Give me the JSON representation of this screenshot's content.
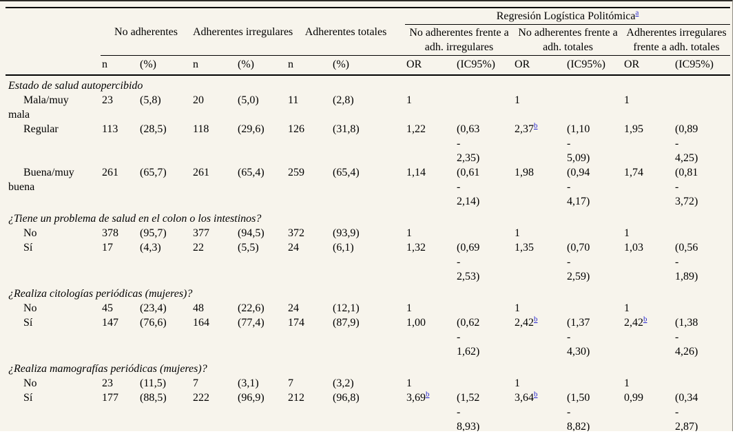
{
  "colors": {
    "background": "#f7f4ec",
    "link": "#2222cc",
    "rule": "#000000"
  },
  "table": {
    "header": {
      "group_columns": [
        "No adherentes",
        "Adherentes irregulares",
        "Adherentes totales"
      ],
      "regression_title": "Regresión Logística Politómica",
      "regression_footnote_ref": "a",
      "comparison_columns": [
        "No adherentes frente a\nadh. irregulares",
        "No adherentes frente a\nadh. totales",
        "Adherentes irregulares\nfrente a adh. totales"
      ],
      "count_headers": [
        "n",
        "(%)"
      ],
      "or_headers": [
        "OR",
        "(IC95%)"
      ]
    },
    "sections": [
      {
        "title": "Estado de salud autopercibido",
        "rows": [
          {
            "label": "Mala/muy\nmala",
            "cells": [
              "23",
              "(5,8)",
              "20",
              "(5,0)",
              "11",
              "(2,8)",
              "1",
              "",
              "1",
              "",
              "1",
              ""
            ]
          },
          {
            "label": "Regular",
            "cells": [
              "113",
              "(28,5)",
              "118",
              "(29,6)",
              "126",
              "(31,8)",
              "1,22",
              "(0,63\n-\n2,35)",
              {
                "v": "2,37",
                "sup": "b"
              },
              "(1,10\n-\n5,09)",
              "1,95",
              "(0,89\n-\n4,25)"
            ]
          },
          {
            "label": "Buena/muy\nbuena",
            "cells": [
              "261",
              "(65,7)",
              "261",
              "(65,4)",
              "259",
              "(65,4)",
              "1,14",
              "(0,61\n-\n2,14)",
              "1,98",
              "(0,94\n-\n4,17)",
              "1,74",
              "(0,81\n-\n3,72)"
            ]
          }
        ]
      },
      {
        "title": "¿Tiene un problema de salud en el colon o los intestinos?",
        "rows": [
          {
            "label": "No",
            "cells": [
              "378",
              "(95,7)",
              "377",
              "(94,5)",
              "372",
              "(93,9)",
              "1",
              "",
              "1",
              "",
              "1",
              ""
            ]
          },
          {
            "label": "Sí",
            "cells": [
              "17",
              "(4,3)",
              "22",
              "(5,5)",
              "24",
              "(6,1)",
              "1,32",
              "(0,69\n-\n2,53)",
              "1,35",
              "(0,70\n-\n2,59)",
              "1,03",
              "(0,56\n-\n1,89)"
            ]
          }
        ]
      },
      {
        "title": "¿Realiza citologías periódicas (mujeres)?",
        "rows": [
          {
            "label": "No",
            "cells": [
              "45",
              "(23,4)",
              "48",
              "(22,6)",
              "24",
              "(12,1)",
              "1",
              "",
              "1",
              "",
              "1",
              ""
            ]
          },
          {
            "label": "Sí",
            "cells": [
              "147",
              "(76,6)",
              "164",
              "(77,4)",
              "174",
              "(87,9)",
              "1,00",
              "(0,62\n-\n1,62)",
              {
                "v": "2,42",
                "sup": "b"
              },
              "(1,37\n-\n4,30)",
              {
                "v": "2,42",
                "sup": "b"
              },
              "(1,38\n-\n4,26)"
            ]
          }
        ]
      },
      {
        "title": "¿Realiza mamografías periódicas (mujeres)?",
        "rows": [
          {
            "label": "No",
            "cells": [
              "23",
              "(11,5)",
              "7",
              "(3,1)",
              "7",
              "(3,2)",
              "1",
              "",
              "1",
              "",
              "1",
              ""
            ]
          },
          {
            "label": "Sí",
            "cells": [
              "177",
              "(88,5)",
              "222",
              "(96,9)",
              "212",
              "(96,8)",
              {
                "v": "3,69",
                "sup": "b"
              },
              "(1,52\n-\n8,93)",
              {
                "v": "3,64",
                "sup": "b"
              },
              "(1,50\n-\n8,82)",
              "0,99",
              "(0,34\n-\n2,87)"
            ]
          }
        ]
      }
    ]
  }
}
